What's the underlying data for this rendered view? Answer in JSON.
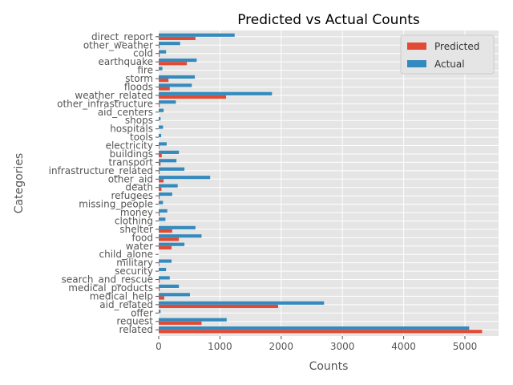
{
  "chart_data": {
    "type": "bar",
    "orientation": "horizontal",
    "title": "Predicted vs Actual Counts",
    "xlabel": "Counts",
    "ylabel": "Categories",
    "xlim": [
      0,
      5550
    ],
    "xticks": [
      0,
      1000,
      2000,
      3000,
      4000,
      5000
    ],
    "grid": true,
    "legend_position": "top-right",
    "categories": [
      "related",
      "request",
      "offer",
      "aid_related",
      "medical_help",
      "medical_products",
      "search_and_rescue",
      "security",
      "military",
      "child_alone",
      "water",
      "food",
      "shelter",
      "clothing",
      "money",
      "missing_people",
      "refugees",
      "death",
      "other_aid",
      "infrastructure_related",
      "transport",
      "buildings",
      "electricity",
      "tools",
      "hospitals",
      "shops",
      "aid_centers",
      "other_infrastructure",
      "weather_related",
      "floods",
      "storm",
      "fire",
      "earthquake",
      "cold",
      "other_weather",
      "direct_report"
    ],
    "series": [
      {
        "name": "Predicted",
        "color": "#E24A33",
        "values": [
          5280,
          700,
          0,
          1950,
          90,
          15,
          15,
          0,
          10,
          0,
          210,
          330,
          220,
          0,
          15,
          0,
          15,
          45,
          80,
          15,
          30,
          50,
          10,
          0,
          0,
          0,
          0,
          15,
          1100,
          180,
          160,
          0,
          460,
          15,
          15,
          600
        ]
      },
      {
        "name": "Actual",
        "color": "#348ABD",
        "values": [
          5070,
          1110,
          30,
          2700,
          510,
          330,
          180,
          120,
          210,
          0,
          420,
          700,
          600,
          110,
          140,
          70,
          220,
          310,
          840,
          420,
          290,
          330,
          130,
          40,
          70,
          30,
          80,
          280,
          1850,
          540,
          590,
          60,
          620,
          120,
          350,
          1240
        ]
      }
    ]
  }
}
